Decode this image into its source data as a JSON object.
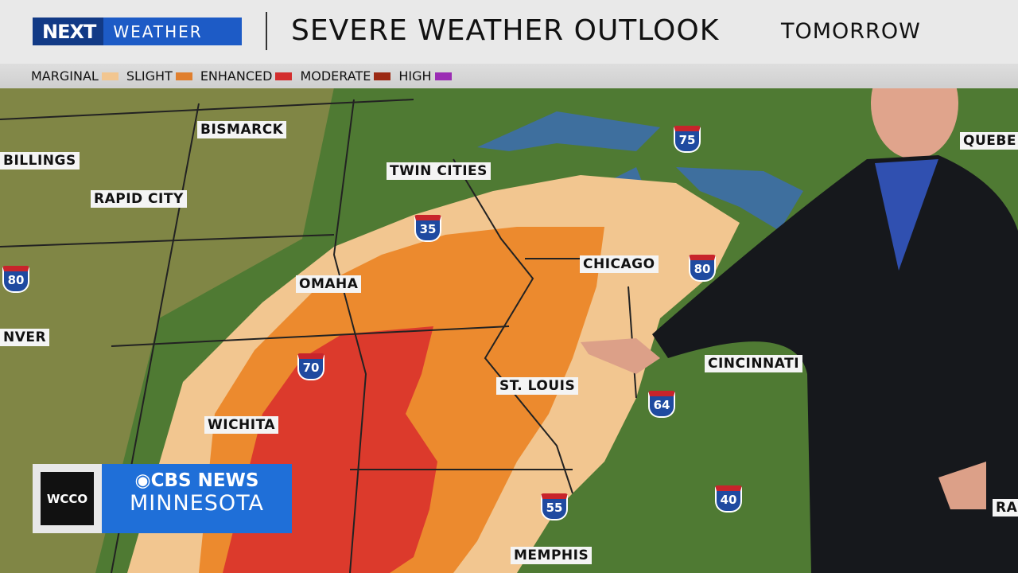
{
  "header": {
    "logo_next": "NEXT",
    "logo_weather": "WEATHER",
    "title": "SEVERE WEATHER OUTLOOK",
    "timeframe": "TOMORROW"
  },
  "legend": [
    {
      "label": "MARGINAL",
      "color": "#f2c690"
    },
    {
      "label": "SLIGHT",
      "color": "#e07f2e"
    },
    {
      "label": "ENHANCED",
      "color": "#d32e2e"
    },
    {
      "label": "MODERATE",
      "color": "#9c2a14"
    },
    {
      "label": "HIGH",
      "color": "#9b2db4"
    }
  ],
  "cities": [
    "BISMARCK",
    "BILLINGS",
    "RAPID CITY",
    "TWIN CITIES",
    "OMAHA",
    "CHICAGO",
    "NVER",
    "CINCINNATI",
    "ST. LOUIS",
    "WICHITA",
    "MEMPHIS",
    "QUEBE",
    "RA"
  ],
  "interstates": [
    "75",
    "35",
    "80",
    "80",
    "70",
    "64",
    "55",
    "40"
  ],
  "station": {
    "call": "WCCO",
    "network": "CBS NEWS",
    "market": "MINNESOTA"
  }
}
